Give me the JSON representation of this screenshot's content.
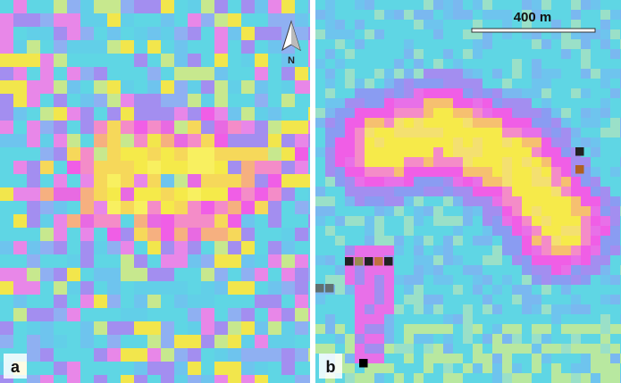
{
  "panels": [
    {
      "label": "a",
      "north_label": "N"
    },
    {
      "label": "b",
      "scale_label": "400 m"
    }
  ]
}
